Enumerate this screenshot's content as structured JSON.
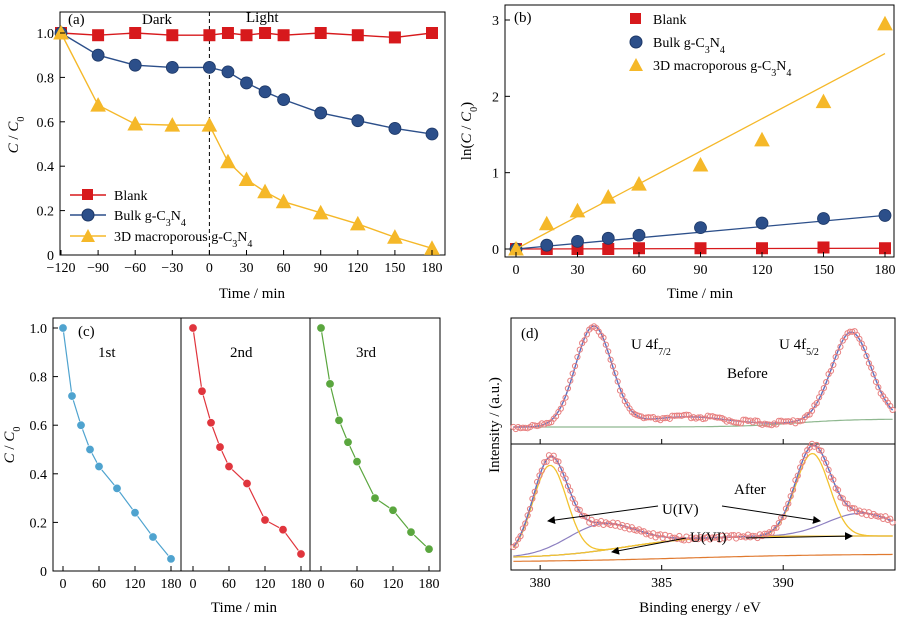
{
  "colors": {
    "blank": "#d7191c",
    "bulk": "#2c4f8a",
    "macro": "#f5b829",
    "cycle1": "#4fa3cf",
    "cycle2": "#e0353d",
    "cycle3": "#5aa63e",
    "xps_raw": "#e88080",
    "xps_fit": "#5a6fc0",
    "xps_bg": "#8fb890",
    "xps_peak_iv": "#f2c230",
    "xps_peak_vi": "#8c7fc0",
    "xps_base_after": "#e07a30"
  },
  "chart_data": [
    {
      "id": "a",
      "type": "line",
      "panel_label": "(a)",
      "xlabel": "Time / min",
      "ylabel_main": "C",
      "ylabel_sep": " / ",
      "ylabel_sub": "0",
      "xlim": [
        -130,
        185
      ],
      "ylim": [
        0,
        1.1
      ],
      "xticks": [
        "-120",
        "-90",
        "-60",
        "-30",
        "0",
        "30",
        "60",
        "90",
        "120",
        "150",
        "180"
      ],
      "yticks": [
        "0",
        "0.2",
        "0.4",
        "0.6",
        "0.8",
        "1.0"
      ],
      "divider_x": 0,
      "annotations": [
        "Dark",
        "Light"
      ],
      "legend_position": "bottom-left",
      "series": [
        {
          "name": "Blank",
          "marker": "square",
          "x": [
            -120,
            -90,
            -60,
            -30,
            0,
            15,
            30,
            45,
            60,
            90,
            120,
            150,
            180
          ],
          "values": [
            1.0,
            0.99,
            1.0,
            0.99,
            0.99,
            1.0,
            0.99,
            1.0,
            0.99,
            1.0,
            0.99,
            0.98,
            1.0
          ]
        },
        {
          "name_pre": "Bulk g-C",
          "name_sub": "3",
          "name_mid": "N",
          "name_sub2": "4",
          "marker": "circle",
          "x": [
            -120,
            -90,
            -60,
            -30,
            0,
            15,
            30,
            45,
            60,
            90,
            120,
            150,
            180
          ],
          "values": [
            1.0,
            0.9,
            0.855,
            0.845,
            0.845,
            0.825,
            0.775,
            0.735,
            0.7,
            0.64,
            0.605,
            0.57,
            0.545
          ]
        },
        {
          "name_pre": "3D macroporous g-C",
          "name_sub": "3",
          "name_mid": "N",
          "name_sub2": "4",
          "marker": "triangle",
          "x": [
            -120,
            -90,
            -60,
            -30,
            0,
            15,
            30,
            45,
            60,
            90,
            120,
            150,
            180
          ],
          "values": [
            1.0,
            0.675,
            0.59,
            0.585,
            0.585,
            0.42,
            0.34,
            0.285,
            0.24,
            0.19,
            0.14,
            0.08,
            0.03
          ]
        }
      ]
    },
    {
      "id": "b",
      "type": "scatter",
      "panel_label": "(b)",
      "xlabel": "Time / min",
      "ylabel_pre": "ln(",
      "ylabel_main": "C",
      "ylabel_sep": " / ",
      "ylabel_c0": "C",
      "ylabel_sub": "0",
      "ylabel_post": ")",
      "xlim": [
        -3,
        185
      ],
      "ylim": [
        -0.05,
        3.15
      ],
      "xticks": [
        "0",
        "30",
        "60",
        "90",
        "120",
        "150",
        "180"
      ],
      "yticks": [
        "0",
        "1",
        "2",
        "3"
      ],
      "legend_position": "top-left",
      "series": [
        {
          "name": "Blank",
          "marker": "square",
          "x": [
            0,
            15,
            30,
            45,
            60,
            90,
            120,
            150,
            180
          ],
          "values": [
            0,
            0.0,
            0.0,
            0.0,
            0.01,
            0.01,
            0.01,
            0.02,
            0.01
          ],
          "fit": [
            [
              0,
              0.0
            ],
            [
              180,
              0.01
            ]
          ]
        },
        {
          "name_pre": "Bulk g-C",
          "name_sub": "3",
          "name_mid": "N",
          "name_sub2": "4",
          "marker": "circle",
          "x": [
            0,
            15,
            30,
            45,
            60,
            90,
            120,
            150,
            180
          ],
          "values": [
            0,
            0.05,
            0.1,
            0.14,
            0.18,
            0.28,
            0.34,
            0.4,
            0.44
          ],
          "fit": [
            [
              0,
              0.0
            ],
            [
              180,
              0.44
            ]
          ]
        },
        {
          "name_pre": "3D macroporous g-C",
          "name_sub": "3",
          "name_mid": "N",
          "name_sub2": "4",
          "marker": "triangle",
          "x": [
            0,
            15,
            30,
            45,
            60,
            90,
            120,
            150,
            180
          ],
          "values": [
            0,
            0.33,
            0.5,
            0.68,
            0.85,
            1.1,
            1.43,
            1.93,
            2.95
          ],
          "fit": [
            [
              0,
              0.0
            ],
            [
              180,
              2.56
            ]
          ]
        }
      ]
    },
    {
      "id": "c",
      "type": "line",
      "panel_label": "(c)",
      "xlabel": "Time / min",
      "ylabel_main": "C",
      "ylabel_sep": " / ",
      "ylabel_sub": "0",
      "ylim": [
        0,
        1.05
      ],
      "yticks": [
        "0",
        "0.2",
        "0.4",
        "0.6",
        "0.8",
        "1.0"
      ],
      "xticks_first": [
        "0",
        "60",
        "120",
        "180"
      ],
      "xticks_rest": [
        "0",
        "60",
        "120",
        "180"
      ],
      "subpanels": [
        {
          "name": "1st",
          "x": [
            0,
            15,
            30,
            45,
            60,
            90,
            120,
            150,
            180
          ],
          "values": [
            1.0,
            0.72,
            0.6,
            0.5,
            0.43,
            0.34,
            0.24,
            0.14,
            0.05
          ]
        },
        {
          "name": "2nd",
          "x": [
            0,
            15,
            30,
            45,
            60,
            90,
            120,
            150,
            180
          ],
          "values": [
            1.0,
            0.74,
            0.61,
            0.51,
            0.43,
            0.36,
            0.21,
            0.17,
            0.07
          ]
        },
        {
          "name": "3rd",
          "x": [
            0,
            15,
            30,
            45,
            60,
            90,
            120,
            150,
            180
          ],
          "values": [
            1.0,
            0.77,
            0.62,
            0.53,
            0.45,
            0.3,
            0.25,
            0.16,
            0.09
          ]
        }
      ]
    },
    {
      "id": "d",
      "type": "line",
      "panel_label": "(d)",
      "xlabel": "Binding energy / eV",
      "ylabel": "Intensity / (a.u.)",
      "xlim": [
        378.8,
        394.6
      ],
      "xticks": [
        "380",
        "385",
        "390"
      ],
      "top_labels": {
        "before": "Before",
        "peak1_pre": "U 4f",
        "peak1_sub": "7/2",
        "peak2_pre": "U 4f",
        "peak2_sub": "5/2"
      },
      "bottom_labels": {
        "after": "After",
        "u4": "U(IV)",
        "u6": "U(VI)"
      },
      "before_peaks": [
        {
          "center": 382.2,
          "height": 1.0
        },
        {
          "center": 392.8,
          "height": 0.88
        }
      ],
      "after_peaks": [
        {
          "label": "U(IV)",
          "center": 380.4,
          "height": 0.95
        },
        {
          "label": "U(IV)",
          "center": 391.2,
          "height": 0.87
        },
        {
          "label": "U(VI)",
          "center": 382.5,
          "height": 0.28
        },
        {
          "label": "U(VI)",
          "center": 393.2,
          "height": 0.24
        }
      ]
    }
  ]
}
